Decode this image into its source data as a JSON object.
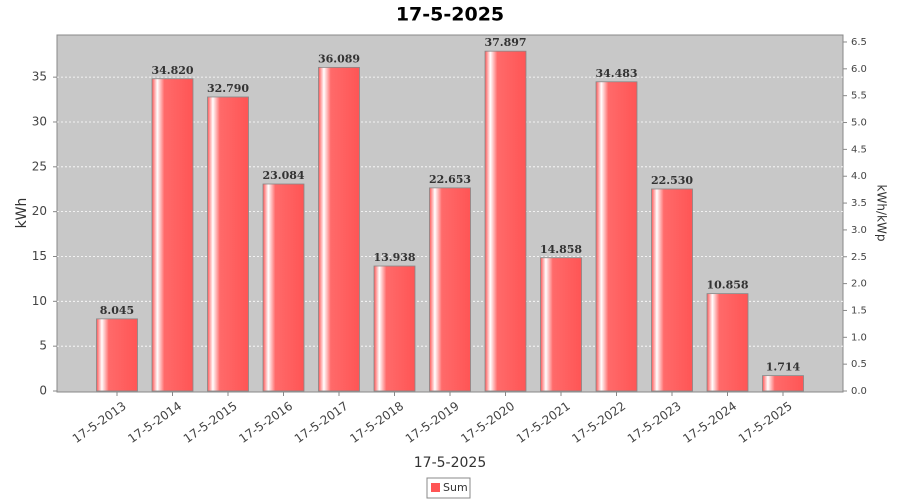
{
  "chart_data": {
    "type": "bar",
    "title": "17-5-2025",
    "x_label": "17-5-2025",
    "y_label": "kWh",
    "y2_label": "kWh/kWp",
    "categories": [
      "17-5-2013",
      "17-5-2014",
      "17-5-2015",
      "17-5-2016",
      "17-5-2017",
      "17-5-2018",
      "17-5-2019",
      "17-5-2020",
      "17-5-2021",
      "17-5-2022",
      "17-5-2023",
      "17-5-2024",
      "17-5-2025"
    ],
    "series": [
      {
        "name": "Sum",
        "color": "#ff5555",
        "values": [
          8.045,
          34.82,
          32.79,
          23.084,
          36.089,
          13.938,
          22.653,
          37.897,
          14.858,
          34.483,
          22.53,
          10.858,
          1.714
        ],
        "value_labels": [
          "8.045",
          "34.820",
          "32.790",
          "23.084",
          "36.089",
          "13.938",
          "22.653",
          "37.897",
          "14.858",
          "34.483",
          "22.530",
          "10.858",
          "1.714"
        ]
      }
    ],
    "ylim": [
      0,
      39.7
    ],
    "yticks": [
      0,
      5,
      10,
      15,
      20,
      25,
      30,
      35
    ],
    "y2lim": [
      0,
      6.63
    ],
    "y2ticks": [
      {
        "value": 0,
        "label": "0.0"
      },
      0.5,
      {
        "value": 1,
        "label": "1.0"
      },
      1.5,
      {
        "value": 2,
        "label": "2.0"
      },
      2.5,
      {
        "value": 3,
        "label": "3.0"
      },
      3.5,
      {
        "value": 4,
        "label": "4.0"
      },
      4.5,
      {
        "value": 5,
        "label": "5.0"
      },
      5.5,
      {
        "value": 6,
        "label": "6.0"
      },
      6.5
    ],
    "grid": true,
    "legend": "bottom"
  }
}
